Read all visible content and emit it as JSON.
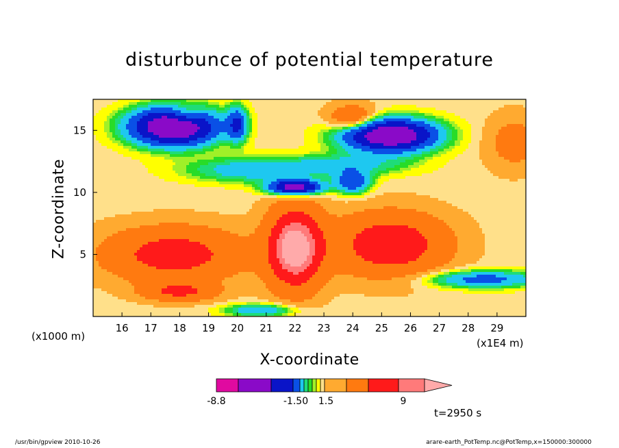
{
  "chart_data": {
    "type": "heatmap",
    "title": "disturbunce of potential temperature",
    "xlabel": "X-coordinate",
    "ylabel": "Z-coordinate",
    "x_unit_left": "(x1000 m)",
    "x_unit_right": "(x1E4 m)",
    "xlim": [
      15.0,
      30.0
    ],
    "ylim": [
      0.0,
      17.5
    ],
    "x_ticks": [
      16,
      17,
      18,
      19,
      20,
      21,
      22,
      23,
      24,
      25,
      26,
      27,
      28,
      29
    ],
    "y_ticks": [
      5,
      10,
      15
    ],
    "time_label": "t=2950 s",
    "colorbar": {
      "labels": [
        "-8.8",
        "-1.50",
        "1.5",
        "9"
      ],
      "colors": [
        "#e00aa0",
        "#8a0ac8",
        "#0a14c8",
        "#0a50e6",
        "#1ec8f0",
        "#1edc78",
        "#28dc28",
        "#a0f028",
        "#ffff00",
        "#ffe08a",
        "#ffaa30",
        "#ff7a10",
        "#ff1a1a",
        "#ff7a7a",
        "#ffaaaa"
      ]
    },
    "features": [
      {
        "name": "upper-left negative lobe",
        "x": 18.0,
        "z": 15.5,
        "level": -8.8
      },
      {
        "name": "upper-right negative lobe",
        "x": 25.2,
        "z": 14.5,
        "level": -8.8
      },
      {
        "name": "central negative core",
        "x": 22.0,
        "z": 10.3,
        "level": -8.8
      },
      {
        "name": "central warm plume",
        "x": 22.0,
        "z": 5.5,
        "level": 9
      },
      {
        "name": "left warm lobe",
        "x": 17.8,
        "z": 5.5,
        "level": 4.5
      },
      {
        "name": "right warm lobe",
        "x": 25.3,
        "z": 5.5,
        "level": 5.5
      }
    ]
  },
  "footer": {
    "left": "/usr/bin/gpview   2010-10-26",
    "right": "arare-earth_PotTemp.nc@PotTemp,x=150000:300000"
  }
}
